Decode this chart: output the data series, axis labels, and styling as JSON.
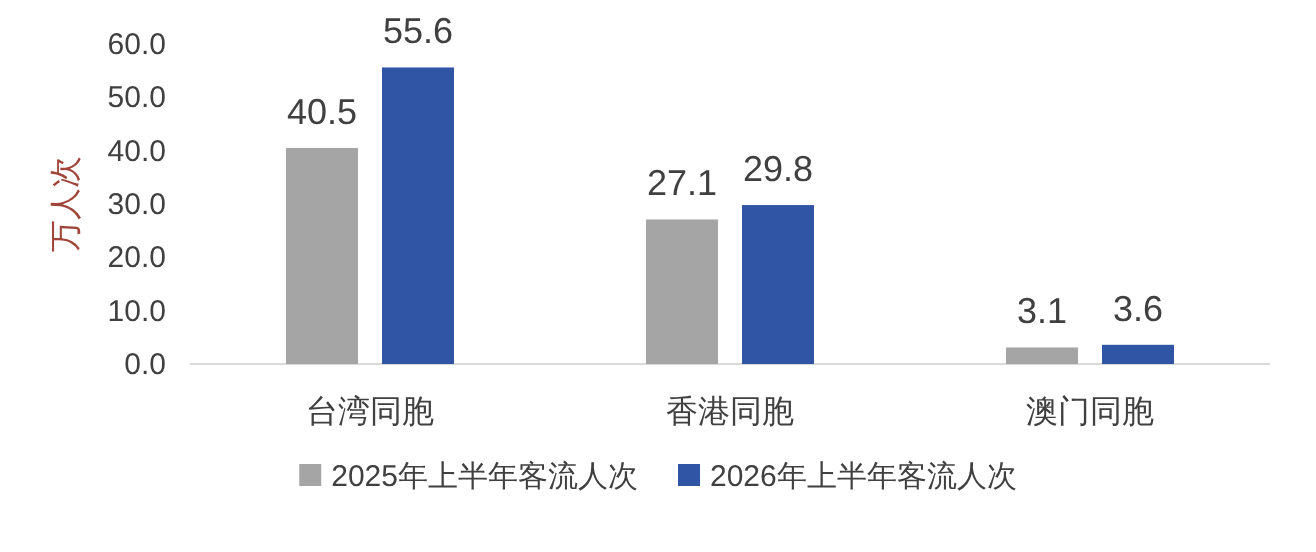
{
  "chart_data": {
    "type": "bar",
    "ylabel": "万人次",
    "categories": [
      "台湾同胞",
      "香港同胞",
      "澳门同胞"
    ],
    "series": [
      {
        "name": "2025年上半年客流人次",
        "color": "#a5a5a5",
        "values": [
          40.5,
          27.1,
          3.1
        ]
      },
      {
        "name": "2026年上半年客流人次",
        "color": "#2f55a4",
        "values": [
          55.6,
          29.8,
          3.6
        ]
      }
    ],
    "ylim": [
      0,
      60
    ],
    "yticks": [
      {
        "value": 0,
        "label": "0.0"
      },
      {
        "value": 10,
        "label": "10.0"
      },
      {
        "value": 20,
        "label": "20.0"
      },
      {
        "value": 30,
        "label": "30.0"
      },
      {
        "value": 40,
        "label": "40.0"
      },
      {
        "value": 50,
        "label": "50.0"
      },
      {
        "value": 60,
        "label": "60.0"
      }
    ],
    "data_labels": true,
    "legend": "bottom",
    "grid": false
  }
}
